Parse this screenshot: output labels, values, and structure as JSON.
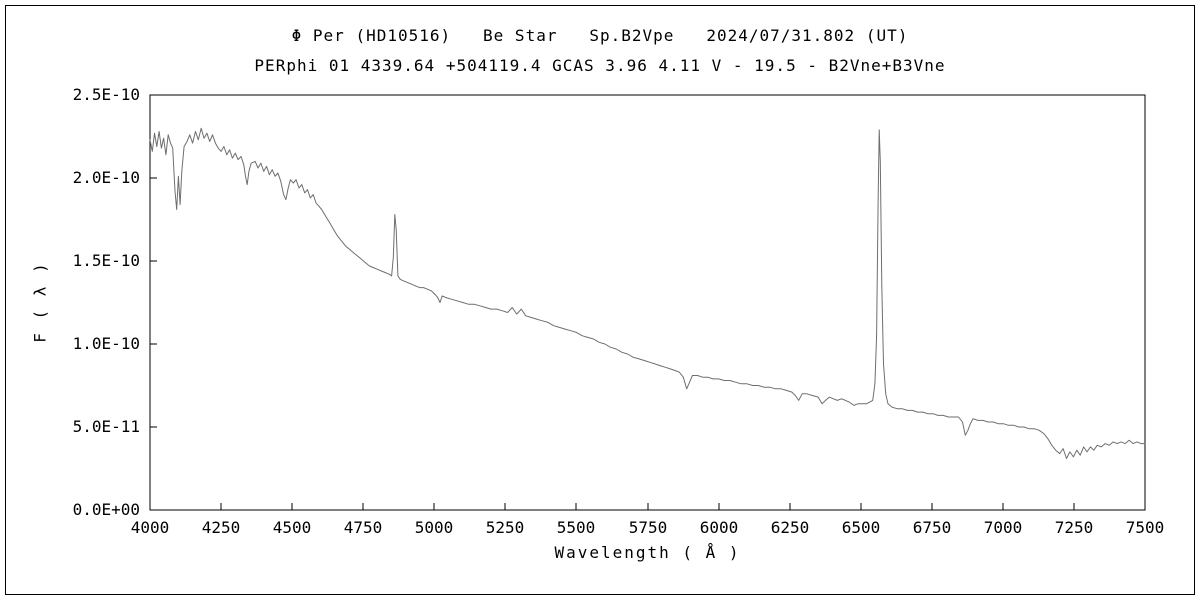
{
  "chart_data": {
    "type": "line",
    "title": "Φ Per (HD10516)   Be Star   Sp.B2Vpe   2024/07/31.802 (UT)",
    "subtitle": "PERphi 01 4339.64 +504119.4 GCAS 3.96 4.11 V - 19.5 - B2Vne+B3Vne",
    "xlabel": "Wavelength ( Å )",
    "ylabel": "F ( λ )",
    "xlim": [
      4000,
      7500
    ],
    "ylim": [
      0,
      2.5e-10
    ],
    "y_unit": 1e-11,
    "grid": false,
    "legend": "none",
    "line_color": "#6e6e6e",
    "axis_color": "#000000",
    "x_ticks": [
      4000,
      4250,
      4500,
      4750,
      5000,
      5250,
      5500,
      5750,
      6000,
      6250,
      6500,
      6750,
      7000,
      7250,
      7500
    ],
    "y_ticks": [
      {
        "value": 0,
        "label": "0.0E+00"
      },
      {
        "value": 5e-11,
        "label": "5.0E-11"
      },
      {
        "value": 1e-10,
        "label": "1.0E-10"
      },
      {
        "value": 1.5e-10,
        "label": "1.5E-10"
      },
      {
        "value": 2e-10,
        "label": "2.0E-10"
      },
      {
        "value": 2.5e-10,
        "label": "2.5E-10"
      }
    ],
    "features": [
      {
        "name": "H-beta emission",
        "wavelength": 4861,
        "peak_flux_e11": 17.8
      },
      {
        "name": "H-alpha emission",
        "wavelength": 6565,
        "peak_flux_e11": 22.9
      },
      {
        "name": "telluric B-band absorption",
        "wavelength": 6870
      },
      {
        "name": "telluric water band absorption",
        "wavelength": 7200
      }
    ],
    "points": [
      [
        4000,
        22.3
      ],
      [
        4008,
        21.6
      ],
      [
        4016,
        22.7
      ],
      [
        4024,
        21.9
      ],
      [
        4032,
        22.8
      ],
      [
        4040,
        21.8
      ],
      [
        4048,
        22.4
      ],
      [
        4056,
        21.4
      ],
      [
        4064,
        22.6
      ],
      [
        4072,
        22.1
      ],
      [
        4080,
        21.8
      ],
      [
        4088,
        19.2
      ],
      [
        4094,
        18.1
      ],
      [
        4100,
        20.1
      ],
      [
        4106,
        18.4
      ],
      [
        4112,
        20.4
      ],
      [
        4120,
        21.9
      ],
      [
        4130,
        22.2
      ],
      [
        4140,
        22.6
      ],
      [
        4150,
        22.1
      ],
      [
        4160,
        22.8
      ],
      [
        4170,
        22.3
      ],
      [
        4180,
        23.0
      ],
      [
        4190,
        22.4
      ],
      [
        4200,
        22.7
      ],
      [
        4210,
        22.2
      ],
      [
        4220,
        22.6
      ],
      [
        4230,
        22.1
      ],
      [
        4240,
        21.8
      ],
      [
        4250,
        21.6
      ],
      [
        4260,
        21.9
      ],
      [
        4270,
        21.4
      ],
      [
        4280,
        21.7
      ],
      [
        4290,
        21.2
      ],
      [
        4300,
        21.5
      ],
      [
        4310,
        21.1
      ],
      [
        4320,
        21.3
      ],
      [
        4330,
        20.8
      ],
      [
        4336,
        20.1
      ],
      [
        4342,
        19.6
      ],
      [
        4348,
        20.4
      ],
      [
        4356,
        20.9
      ],
      [
        4370,
        21.0
      ],
      [
        4380,
        20.6
      ],
      [
        4390,
        20.9
      ],
      [
        4400,
        20.4
      ],
      [
        4410,
        20.7
      ],
      [
        4420,
        20.2
      ],
      [
        4430,
        20.5
      ],
      [
        4440,
        20.1
      ],
      [
        4450,
        20.3
      ],
      [
        4460,
        19.8
      ],
      [
        4470,
        19.0
      ],
      [
        4478,
        18.7
      ],
      [
        4486,
        19.4
      ],
      [
        4494,
        19.9
      ],
      [
        4504,
        19.7
      ],
      [
        4514,
        19.9
      ],
      [
        4524,
        19.4
      ],
      [
        4534,
        19.6
      ],
      [
        4544,
        19.1
      ],
      [
        4554,
        19.3
      ],
      [
        4564,
        18.8
      ],
      [
        4574,
        19.0
      ],
      [
        4584,
        18.5
      ],
      [
        4594,
        18.3
      ],
      [
        4604,
        18.1
      ],
      [
        4618,
        17.7
      ],
      [
        4632,
        17.3
      ],
      [
        4646,
        16.9
      ],
      [
        4660,
        16.5
      ],
      [
        4674,
        16.2
      ],
      [
        4688,
        15.9
      ],
      [
        4702,
        15.7
      ],
      [
        4716,
        15.5
      ],
      [
        4730,
        15.3
      ],
      [
        4744,
        15.1
      ],
      [
        4758,
        14.9
      ],
      [
        4772,
        14.7
      ],
      [
        4786,
        14.6
      ],
      [
        4800,
        14.5
      ],
      [
        4814,
        14.4
      ],
      [
        4828,
        14.3
      ],
      [
        4842,
        14.2
      ],
      [
        4850,
        14.1
      ],
      [
        4856,
        15.2
      ],
      [
        4861,
        17.8
      ],
      [
        4866,
        16.9
      ],
      [
        4872,
        14.1
      ],
      [
        4880,
        13.9
      ],
      [
        4892,
        13.8
      ],
      [
        4906,
        13.7
      ],
      [
        4920,
        13.6
      ],
      [
        4934,
        13.5
      ],
      [
        4948,
        13.4
      ],
      [
        4962,
        13.4
      ],
      [
        4976,
        13.3
      ],
      [
        4990,
        13.2
      ],
      [
        5002,
        13.0
      ],
      [
        5012,
        12.8
      ],
      [
        5020,
        12.5
      ],
      [
        5028,
        12.9
      ],
      [
        5040,
        12.8
      ],
      [
        5060,
        12.7
      ],
      [
        5080,
        12.6
      ],
      [
        5100,
        12.5
      ],
      [
        5120,
        12.4
      ],
      [
        5140,
        12.4
      ],
      [
        5160,
        12.3
      ],
      [
        5180,
        12.2
      ],
      [
        5200,
        12.1
      ],
      [
        5220,
        12.1
      ],
      [
        5240,
        12.0
      ],
      [
        5258,
        11.9
      ],
      [
        5274,
        12.2
      ],
      [
        5290,
        11.8
      ],
      [
        5306,
        12.1
      ],
      [
        5322,
        11.7
      ],
      [
        5340,
        11.6
      ],
      [
        5360,
        11.5
      ],
      [
        5380,
        11.4
      ],
      [
        5400,
        11.3
      ],
      [
        5420,
        11.1
      ],
      [
        5440,
        11.0
      ],
      [
        5460,
        10.9
      ],
      [
        5480,
        10.8
      ],
      [
        5500,
        10.7
      ],
      [
        5520,
        10.5
      ],
      [
        5540,
        10.4
      ],
      [
        5560,
        10.3
      ],
      [
        5580,
        10.1
      ],
      [
        5600,
        10.0
      ],
      [
        5620,
        9.8
      ],
      [
        5640,
        9.7
      ],
      [
        5660,
        9.5
      ],
      [
        5680,
        9.4
      ],
      [
        5700,
        9.2
      ],
      [
        5720,
        9.1
      ],
      [
        5740,
        9.0
      ],
      [
        5758,
        8.9
      ],
      [
        5776,
        8.8
      ],
      [
        5794,
        8.7
      ],
      [
        5812,
        8.6
      ],
      [
        5830,
        8.5
      ],
      [
        5848,
        8.4
      ],
      [
        5862,
        8.3
      ],
      [
        5876,
        8.0
      ],
      [
        5888,
        7.3
      ],
      [
        5898,
        7.7
      ],
      [
        5908,
        8.1
      ],
      [
        5926,
        8.1
      ],
      [
        5944,
        8.0
      ],
      [
        5962,
        8.0
      ],
      [
        5980,
        7.9
      ],
      [
        6000,
        7.9
      ],
      [
        6020,
        7.8
      ],
      [
        6040,
        7.8
      ],
      [
        6060,
        7.7
      ],
      [
        6080,
        7.6
      ],
      [
        6100,
        7.6
      ],
      [
        6120,
        7.5
      ],
      [
        6140,
        7.5
      ],
      [
        6160,
        7.4
      ],
      [
        6180,
        7.4
      ],
      [
        6200,
        7.3
      ],
      [
        6220,
        7.3
      ],
      [
        6240,
        7.2
      ],
      [
        6258,
        7.1
      ],
      [
        6270,
        6.9
      ],
      [
        6282,
        6.6
      ],
      [
        6294,
        7.0
      ],
      [
        6310,
        7.0
      ],
      [
        6330,
        6.9
      ],
      [
        6350,
        6.8
      ],
      [
        6364,
        6.4
      ],
      [
        6376,
        6.6
      ],
      [
        6390,
        6.8
      ],
      [
        6404,
        6.7
      ],
      [
        6418,
        6.6
      ],
      [
        6432,
        6.7
      ],
      [
        6446,
        6.6
      ],
      [
        6460,
        6.5
      ],
      [
        6476,
        6.3
      ],
      [
        6490,
        6.4
      ],
      [
        6505,
        6.4
      ],
      [
        6520,
        6.4
      ],
      [
        6532,
        6.5
      ],
      [
        6542,
        6.6
      ],
      [
        6550,
        7.6
      ],
      [
        6556,
        10.5
      ],
      [
        6561,
        18.5
      ],
      [
        6565,
        22.9
      ],
      [
        6569,
        21.0
      ],
      [
        6574,
        13.5
      ],
      [
        6580,
        8.8
      ],
      [
        6588,
        7.0
      ],
      [
        6596,
        6.4
      ],
      [
        6610,
        6.2
      ],
      [
        6628,
        6.1
      ],
      [
        6646,
        6.1
      ],
      [
        6664,
        6.0
      ],
      [
        6682,
        6.0
      ],
      [
        6700,
        5.9
      ],
      [
        6718,
        5.9
      ],
      [
        6736,
        5.8
      ],
      [
        6754,
        5.8
      ],
      [
        6772,
        5.7
      ],
      [
        6790,
        5.7
      ],
      [
        6808,
        5.6
      ],
      [
        6826,
        5.6
      ],
      [
        6844,
        5.6
      ],
      [
        6858,
        5.3
      ],
      [
        6868,
        4.5
      ],
      [
        6877,
        4.8
      ],
      [
        6886,
        5.2
      ],
      [
        6895,
        5.5
      ],
      [
        6912,
        5.4
      ],
      [
        6930,
        5.4
      ],
      [
        6948,
        5.3
      ],
      [
        6966,
        5.3
      ],
      [
        6984,
        5.2
      ],
      [
        7002,
        5.2
      ],
      [
        7020,
        5.1
      ],
      [
        7038,
        5.1
      ],
      [
        7056,
        5.0
      ],
      [
        7074,
        5.0
      ],
      [
        7092,
        4.9
      ],
      [
        7110,
        4.9
      ],
      [
        7128,
        4.8
      ],
      [
        7144,
        4.6
      ],
      [
        7158,
        4.3
      ],
      [
        7172,
        3.9
      ],
      [
        7186,
        3.6
      ],
      [
        7200,
        3.4
      ],
      [
        7212,
        3.7
      ],
      [
        7224,
        3.1
      ],
      [
        7236,
        3.5
      ],
      [
        7248,
        3.2
      ],
      [
        7260,
        3.6
      ],
      [
        7272,
        3.3
      ],
      [
        7284,
        3.8
      ],
      [
        7296,
        3.5
      ],
      [
        7308,
        3.8
      ],
      [
        7320,
        3.6
      ],
      [
        7332,
        3.9
      ],
      [
        7346,
        3.8
      ],
      [
        7360,
        4.0
      ],
      [
        7374,
        3.9
      ],
      [
        7388,
        4.1
      ],
      [
        7402,
        4.0
      ],
      [
        7416,
        4.1
      ],
      [
        7430,
        4.0
      ],
      [
        7444,
        4.2
      ],
      [
        7458,
        4.0
      ],
      [
        7472,
        4.1
      ],
      [
        7486,
        4.0
      ],
      [
        7500,
        4.0
      ]
    ]
  }
}
